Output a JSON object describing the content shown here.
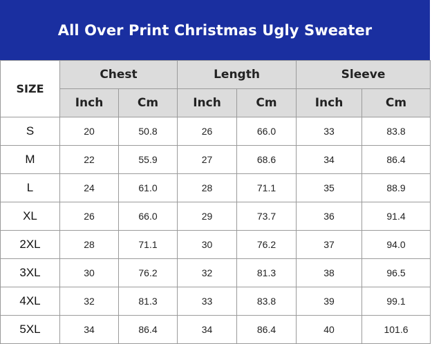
{
  "title": "All Over Print Christmas Ugly Sweater",
  "table": {
    "size_label": "SIZE",
    "groups": [
      "Chest",
      "Length",
      "Sleeve"
    ],
    "units": [
      "Inch",
      "Cm",
      "Inch",
      "Cm",
      "Inch",
      "Cm"
    ],
    "rows": [
      {
        "size": "S",
        "values": [
          "20",
          "50.8",
          "26",
          "66.0",
          "33",
          "83.8"
        ]
      },
      {
        "size": "M",
        "values": [
          "22",
          "55.9",
          "27",
          "68.6",
          "34",
          "86.4"
        ]
      },
      {
        "size": "L",
        "values": [
          "24",
          "61.0",
          "28",
          "71.1",
          "35",
          "88.9"
        ]
      },
      {
        "size": "XL",
        "values": [
          "26",
          "66.0",
          "29",
          "73.7",
          "36",
          "91.4"
        ]
      },
      {
        "size": "2XL",
        "values": [
          "28",
          "71.1",
          "30",
          "76.2",
          "37",
          "94.0"
        ]
      },
      {
        "size": "3XL",
        "values": [
          "30",
          "76.2",
          "32",
          "81.3",
          "38",
          "96.5"
        ]
      },
      {
        "size": "4XL",
        "values": [
          "32",
          "81.3",
          "33",
          "83.8",
          "39",
          "99.1"
        ]
      },
      {
        "size": "5XL",
        "values": [
          "34",
          "86.4",
          "34",
          "86.4",
          "40",
          "101.6"
        ]
      }
    ]
  },
  "colors": {
    "banner": "#1a2fa0",
    "header_bg": "#dcdcdc",
    "border": "#9a9a9a"
  }
}
